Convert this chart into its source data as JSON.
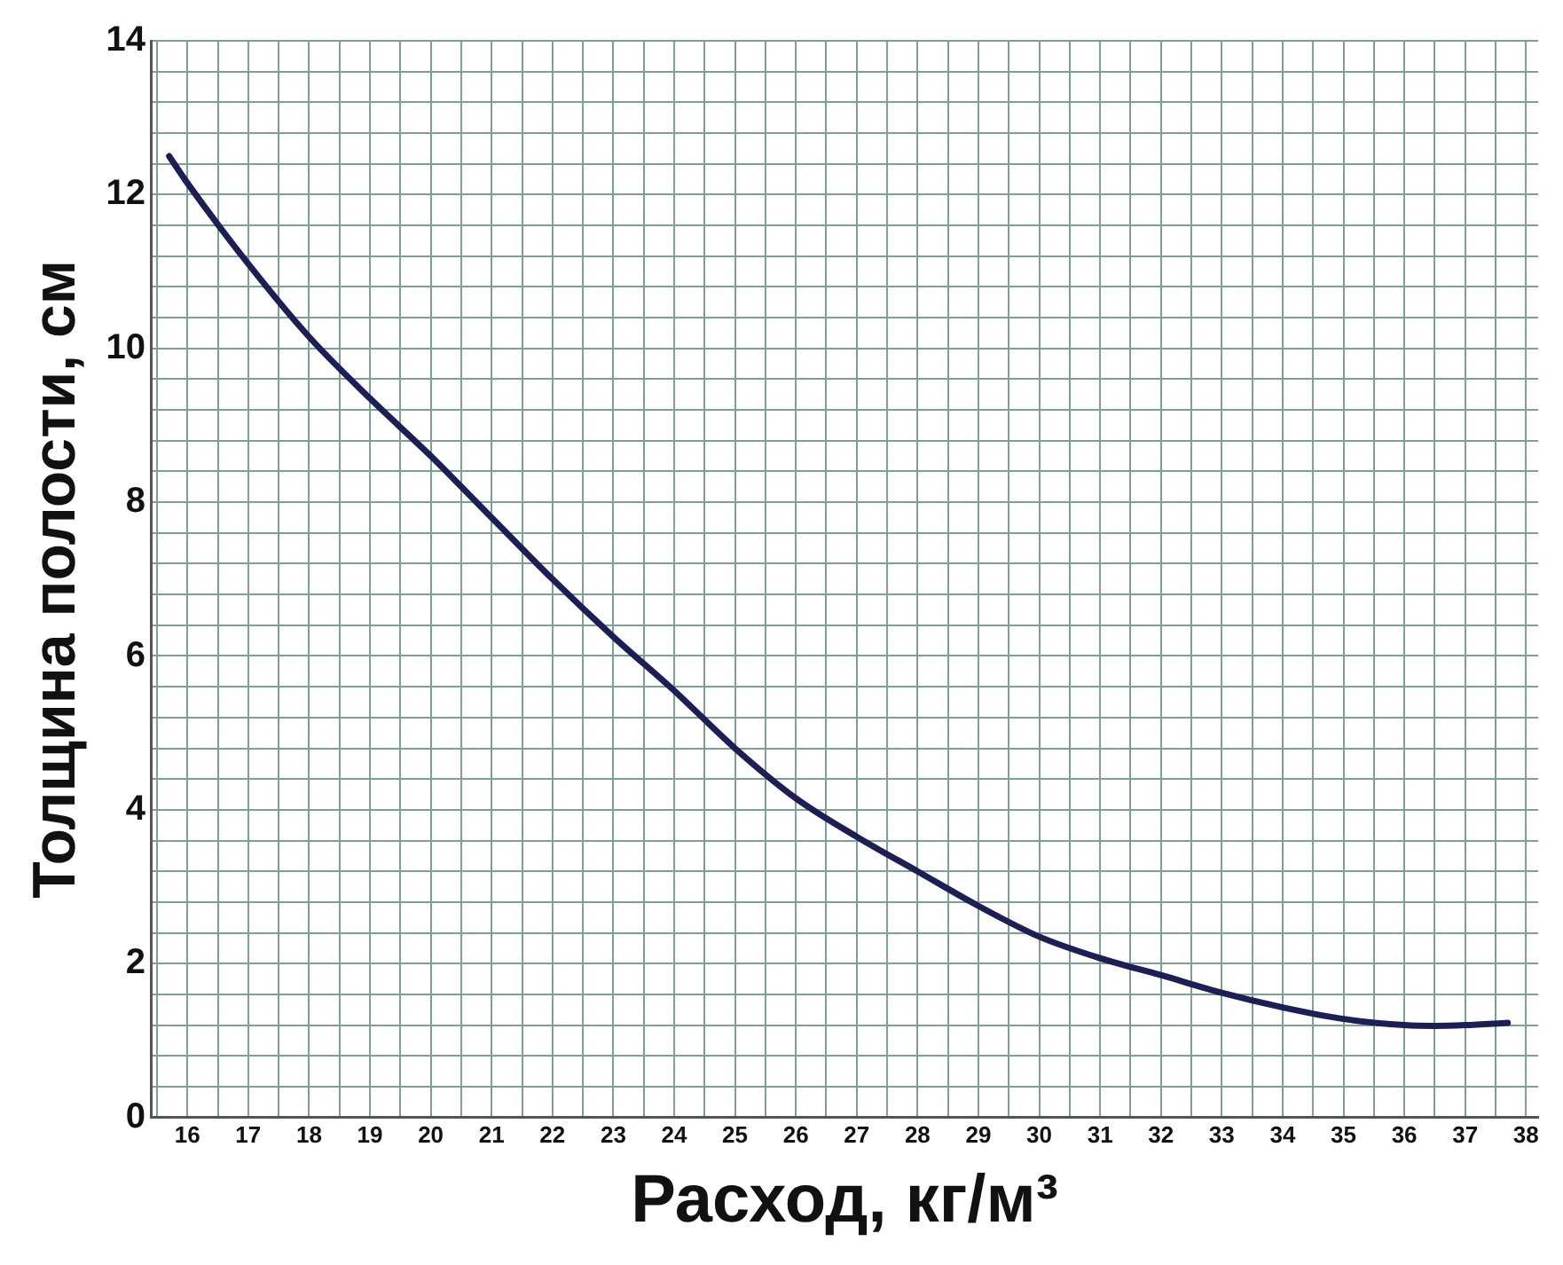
{
  "chart_data": {
    "type": "line",
    "xlabel": "Расход, кг/м³",
    "ylabel": "Толщина полости, см",
    "x": [
      15.7,
      16,
      17,
      18,
      19,
      20,
      21,
      22,
      23,
      24,
      25,
      26,
      27,
      28,
      29,
      30,
      31,
      32,
      33,
      34,
      35,
      36,
      36.5,
      37,
      37.7
    ],
    "series": [
      {
        "color": "#1c1f55",
        "values": [
          12.5,
          12.15,
          11.1,
          10.15,
          9.35,
          8.6,
          7.8,
          7.0,
          6.25,
          5.55,
          4.8,
          4.15,
          3.65,
          3.2,
          2.75,
          2.35,
          2.07,
          1.85,
          1.62,
          1.43,
          1.28,
          1.2,
          1.19,
          1.2,
          1.23
        ]
      }
    ],
    "xlim": [
      15.4,
      38.2
    ],
    "ylim": [
      0,
      14
    ],
    "xticks": [
      {
        "value": 15.5,
        "label": null
      },
      16,
      {
        "value": 16.5,
        "label": null
      },
      17,
      {
        "value": 17.5,
        "label": null
      },
      18,
      {
        "value": 18.5,
        "label": null
      },
      19,
      {
        "value": 19.5,
        "label": null
      },
      20,
      {
        "value": 20.5,
        "label": null
      },
      21,
      {
        "value": 21.5,
        "label": null
      },
      22,
      {
        "value": 22.5,
        "label": null
      },
      23,
      {
        "value": 23.5,
        "label": null
      },
      24,
      {
        "value": 24.5,
        "label": null
      },
      25,
      {
        "value": 25.5,
        "label": null
      },
      26,
      {
        "value": 26.5,
        "label": null
      },
      27,
      {
        "value": 27.5,
        "label": null
      },
      28,
      {
        "value": 28.5,
        "label": null
      },
      29,
      {
        "value": 29.5,
        "label": null
      },
      30,
      {
        "value": 30.5,
        "label": null
      },
      31,
      {
        "value": 31.5,
        "label": null
      },
      32,
      {
        "value": 32.5,
        "label": null
      },
      33,
      {
        "value": 33.5,
        "label": null
      },
      34,
      {
        "value": 34.5,
        "label": null
      },
      35,
      {
        "value": 35.5,
        "label": null
      },
      36,
      {
        "value": 36.5,
        "label": null
      },
      37,
      {
        "value": 37.5,
        "label": null
      },
      38
    ],
    "yticks": [
      0,
      {
        "value": 0.4,
        "label": null
      },
      {
        "value": 0.8,
        "label": null
      },
      {
        "value": 1.2,
        "label": null
      },
      {
        "value": 1.6,
        "label": null
      },
      2,
      {
        "value": 2.4,
        "label": null
      },
      {
        "value": 2.8,
        "label": null
      },
      {
        "value": 3.2,
        "label": null
      },
      {
        "value": 3.6,
        "label": null
      },
      4,
      {
        "value": 4.4,
        "label": null
      },
      {
        "value": 4.8,
        "label": null
      },
      {
        "value": 5.2,
        "label": null
      },
      {
        "value": 5.6,
        "label": null
      },
      6,
      {
        "value": 6.4,
        "label": null
      },
      {
        "value": 6.8,
        "label": null
      },
      {
        "value": 7.2,
        "label": null
      },
      {
        "value": 7.6,
        "label": null
      },
      8,
      {
        "value": 8.4,
        "label": null
      },
      {
        "value": 8.8,
        "label": null
      },
      {
        "value": 9.2,
        "label": null
      },
      {
        "value": 9.6,
        "label": null
      },
      10,
      {
        "value": 10.4,
        "label": null
      },
      {
        "value": 10.8,
        "label": null
      },
      {
        "value": 11.2,
        "label": null
      },
      {
        "value": 11.6,
        "label": null
      },
      12,
      {
        "value": 12.4,
        "label": null
      },
      {
        "value": 12.8,
        "label": null
      },
      {
        "value": 13.2,
        "label": null
      },
      {
        "value": 13.6,
        "label": null
      },
      14
    ],
    "grid": true,
    "legend": false,
    "marker": "none",
    "line_style": "solid"
  }
}
